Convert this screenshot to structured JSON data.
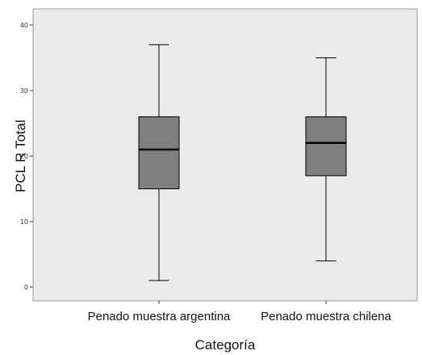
{
  "chart_data": {
    "type": "boxplot",
    "xlabel": "Categoría",
    "ylabel": "PCL R Total",
    "ylim": [
      -2,
      42
    ],
    "yticks": [
      0,
      10,
      20,
      30,
      40
    ],
    "grid": false,
    "categories": [
      "Penado muestra argentina",
      "Penado muestra chilena"
    ],
    "boxes": [
      {
        "category": "Penado muestra argentina",
        "min": 1,
        "q1": 15,
        "median": 21,
        "q3": 26,
        "max": 37
      },
      {
        "category": "Penado muestra chilena",
        "min": 4,
        "q1": 17,
        "median": 22,
        "q3": 26,
        "max": 35
      }
    ]
  },
  "colors": {
    "plot_background": "#ebebeb",
    "box_fill": "#7f7f7f",
    "median_line": "#000000",
    "whisker": "#000000"
  }
}
